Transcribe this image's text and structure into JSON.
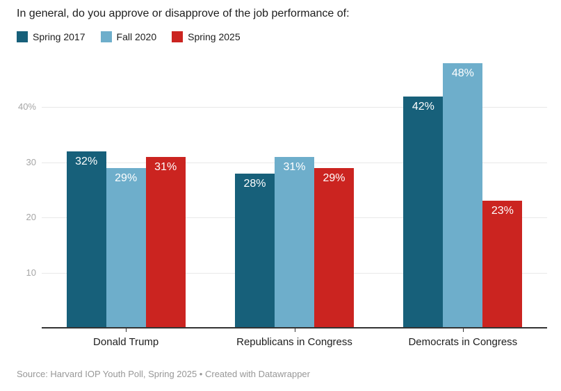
{
  "title": "In general, do you approve or disapprove of the job performance of:",
  "chart_data": {
    "type": "bar",
    "title": "In general, do you approve or disapprove of the job performance of:",
    "categories": [
      "Donald Trump",
      "Republicans in Congress",
      "Democrats in Congress"
    ],
    "series": [
      {
        "name": "Spring 2017",
        "color": "#17607a",
        "values": [
          32,
          28,
          42
        ]
      },
      {
        "name": "Fall 2020",
        "color": "#6eaecb",
        "values": [
          29,
          31,
          48
        ]
      },
      {
        "name": "Spring 2025",
        "color": "#cb2420",
        "values": [
          31,
          29,
          23
        ]
      }
    ],
    "value_suffix": "%",
    "y_ticks": [
      {
        "value": 10,
        "label": "10"
      },
      {
        "value": 20,
        "label": "20"
      },
      {
        "value": 30,
        "label": "30"
      },
      {
        "value": 40,
        "label": "40%"
      }
    ],
    "ylim": [
      0,
      50
    ],
    "grid": true,
    "legend_position": "top",
    "xlabel": "",
    "ylabel": ""
  },
  "footer": {
    "source": "Source: Harvard IOP Youth Poll, Spring 2025 • Created with Datawrapper"
  }
}
